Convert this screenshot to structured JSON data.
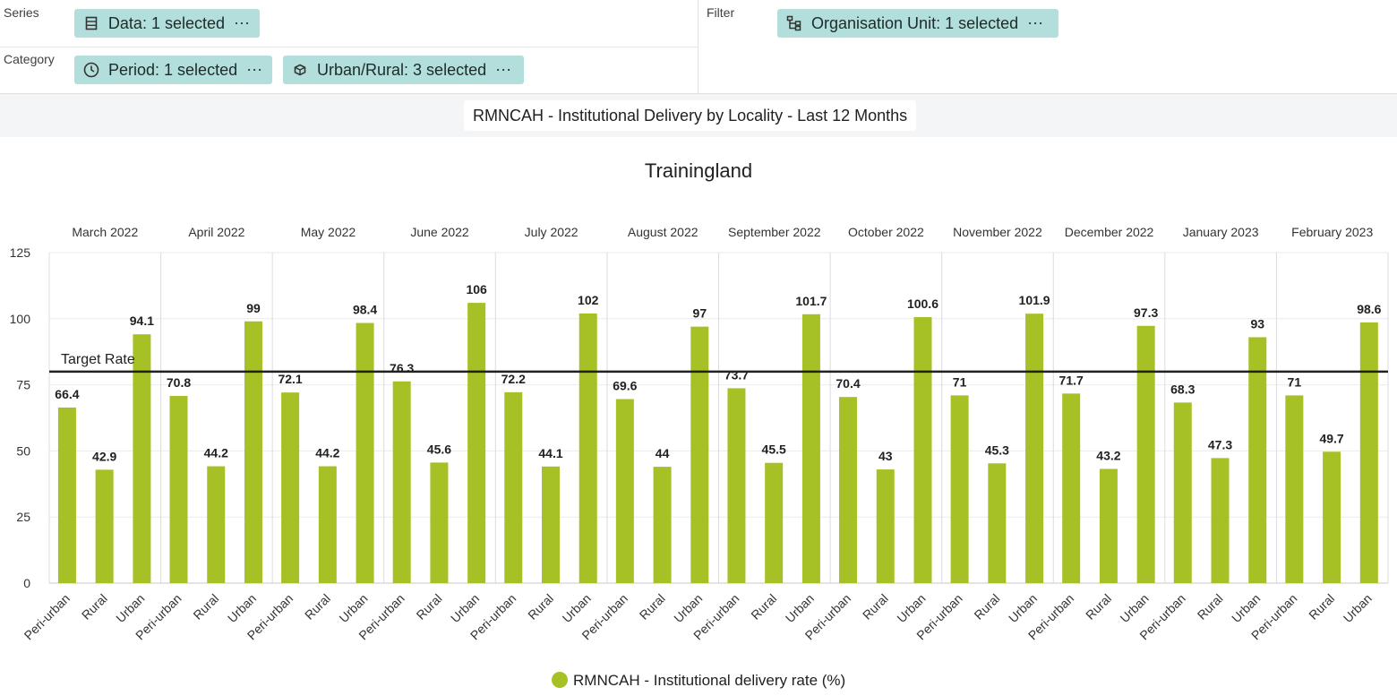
{
  "layout": {
    "series_label": "Series",
    "category_label": "Category",
    "filter_label": "Filter",
    "chips": {
      "data": "Data: 1 selected",
      "period": "Period: 1 selected",
      "urban_rural": "Urban/Rural: 3 selected",
      "org_unit": "Organisation Unit: 1 selected"
    },
    "more_glyph": "⋯",
    "chip_color": "#b2dfdb"
  },
  "visualization_title": "RMNCAH - Institutional Delivery by Locality - Last 12 Months",
  "chart_data": {
    "type": "bar",
    "title": "Trainingland",
    "groups": [
      "March 2022",
      "April 2022",
      "May 2022",
      "June 2022",
      "July 2022",
      "August 2022",
      "September 2022",
      "October 2022",
      "November 2022",
      "December 2022",
      "January 2023",
      "February 2023"
    ],
    "subcategories": [
      "Peri-urban",
      "Rural",
      "Urban"
    ],
    "series": [
      {
        "name": "RMNCAH - Institutional delivery rate (%)",
        "color": "#a6c126",
        "values": [
          [
            66.4,
            42.9,
            94.1
          ],
          [
            70.8,
            44.2,
            99
          ],
          [
            72.1,
            44.2,
            98.4
          ],
          [
            76.3,
            45.6,
            106
          ],
          [
            72.2,
            44.1,
            102
          ],
          [
            69.6,
            44,
            97
          ],
          [
            73.7,
            45.5,
            101.7
          ],
          [
            70.4,
            43,
            100.6
          ],
          [
            71,
            45.3,
            101.9
          ],
          [
            71.7,
            43.2,
            97.3
          ],
          [
            68.3,
            47.3,
            93
          ],
          [
            71,
            49.7,
            98.6
          ]
        ]
      }
    ],
    "ylim": [
      0,
      125
    ],
    "yticks": [
      0,
      25,
      50,
      75,
      100,
      125
    ],
    "target_line": {
      "label": "Target Rate",
      "value": 80,
      "color": "#212121"
    },
    "grid": true,
    "legend_position": "bottom-center"
  }
}
